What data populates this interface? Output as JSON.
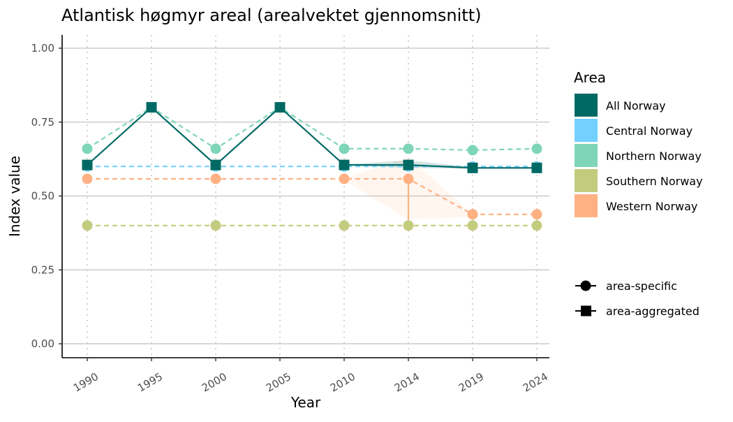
{
  "chart_data": {
    "type": "line",
    "title": "Atlantisk høgmyr areal (arealvektet gjennomsnitt)",
    "xlabel": "Year",
    "ylabel": "Index value",
    "x": [
      1990,
      1995,
      2000,
      2005,
      2010,
      2014,
      2019,
      2024
    ],
    "x_tick_labels": [
      "1990",
      "1995",
      "2000",
      "2005",
      "2010",
      "2014",
      "2019",
      "2024"
    ],
    "ylim": [
      0,
      1
    ],
    "y_ticks": [
      0,
      0.25,
      0.5,
      0.75,
      1.0
    ],
    "y_tick_labels": [
      "0.00",
      "0.25",
      "0.50",
      "0.75",
      "1.00"
    ],
    "grid": "horizontal major lines, dotted vertical lines at years",
    "legend": {
      "title": "Area",
      "placement": "right",
      "entries": [
        "All Norway",
        "Central Norway",
        "Northern Norway",
        "Southern Norway",
        "Western Norway"
      ],
      "shape_entries": [
        {
          "label": "area-specific",
          "shape": "circle"
        },
        {
          "label": "area-aggregated",
          "shape": "square"
        }
      ]
    },
    "series": [
      {
        "name": "Central Norway",
        "color": "#73D0FF",
        "line": "dashed",
        "marker": "circle",
        "values": [
          0.6,
          null,
          0.6,
          null,
          0.6,
          0.6,
          0.6,
          0.6
        ]
      },
      {
        "name": "Northern Norway",
        "color": "#7FD5B8",
        "line": "dashed",
        "marker": "circle",
        "values": [
          0.66,
          0.8,
          0.66,
          0.8,
          0.66,
          0.66,
          0.655,
          0.66
        ]
      },
      {
        "name": "Southern Norway",
        "color": "#C3CC7E",
        "line": "dashed",
        "marker": "circle",
        "values": [
          0.4,
          null,
          0.4,
          null,
          0.4,
          0.4,
          0.4,
          0.4
        ]
      },
      {
        "name": "Western Norway",
        "color": "#FFB183",
        "line": "dashed",
        "marker": "circle",
        "values": [
          0.558,
          null,
          0.558,
          null,
          0.558,
          0.558,
          0.438,
          0.438
        ]
      },
      {
        "name": "All Norway",
        "color": "#006964",
        "line": "solid",
        "marker": "square",
        "values": [
          0.605,
          0.8,
          0.605,
          0.8,
          0.605,
          0.605,
          0.595,
          0.595
        ]
      }
    ],
    "uncertainty_bands": [
      {
        "series": "Western Norway",
        "color": "#FFB183",
        "opacity": 0.12,
        "x": [
          2010,
          2014,
          2019
        ],
        "lower": [
          0.555,
          0.42,
          0.43
        ],
        "upper": [
          0.56,
          0.63,
          0.44
        ]
      },
      {
        "series": "All Norway",
        "color": "#006964",
        "opacity": 0.18,
        "x": [
          2010,
          2014,
          2019
        ],
        "lower": [
          0.603,
          0.595,
          0.592
        ],
        "upper": [
          0.607,
          0.62,
          0.598
        ]
      }
    ],
    "error_bars": [
      {
        "series": "Western Norway",
        "x": 2014,
        "lower": 0.42,
        "upper": 0.558,
        "color": "#FFB183"
      }
    ]
  }
}
